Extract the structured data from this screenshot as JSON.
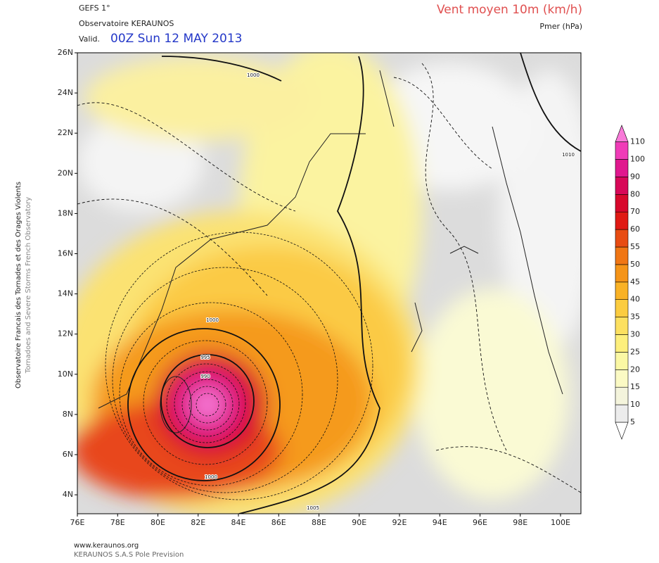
{
  "header": {
    "model": "GEFS 1°",
    "source": "Observatoire KERAUNOS",
    "valid_label": "Valid.",
    "valid_time": "00Z Sun 12 MAY 2013",
    "field": "Vent moyen 10m (km/h)",
    "field2": "Pmer (hPa)"
  },
  "side": {
    "line1": "Observatoire Francais des Tornades et des Orages Violents",
    "line2": "Tornadoes and Severe Storms French Observatory"
  },
  "footer": {
    "url": "www.keraunos.org",
    "company": "KERAUNOS S.A.S Pole Prevision"
  },
  "map": {
    "lat_labels": [
      "26N",
      "24N",
      "22N",
      "20N",
      "18N",
      "16N",
      "14N",
      "12N",
      "10N",
      "8N",
      "6N",
      "4N"
    ],
    "lon_labels": [
      "76E",
      "78E",
      "80E",
      "82E",
      "84E",
      "86E",
      "88E",
      "90E",
      "92E",
      "94E",
      "96E",
      "98E",
      "100E"
    ],
    "isobar_labels": [
      "1000",
      "1010",
      "1000",
      "995",
      "990",
      "1000",
      "1005"
    ]
  },
  "colorbar": {
    "labels": [
      5,
      10,
      15,
      20,
      25,
      30,
      35,
      40,
      45,
      50,
      55,
      60,
      70,
      80,
      90,
      100,
      110
    ],
    "colors": [
      "#ececec",
      "#f4f4dc",
      "#fbfac4",
      "#fbf8a4",
      "#fdef7c",
      "#fce060",
      "#fbcc40",
      "#f9b226",
      "#f59418",
      "#f07614",
      "#e84c12",
      "#e01a14",
      "#d8082c",
      "#d80858",
      "#e0188e",
      "#f03cb8",
      "#f87ad8"
    ]
  }
}
